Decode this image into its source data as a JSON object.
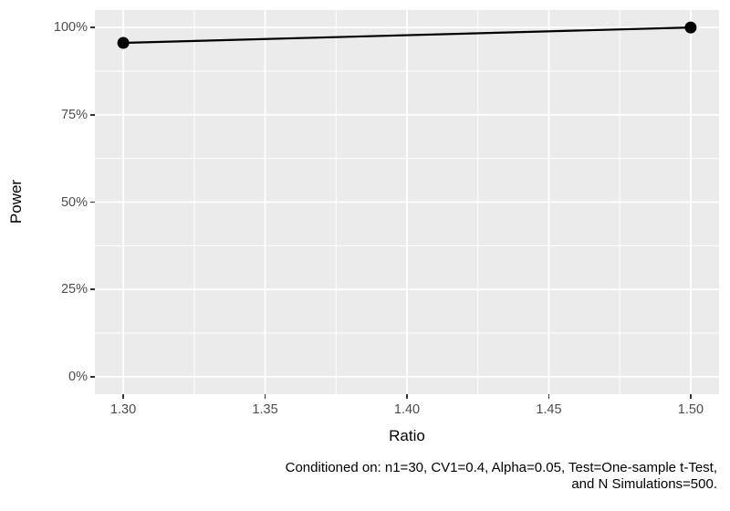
{
  "chart_data": {
    "type": "line",
    "title": "",
    "xlabel": "Ratio",
    "ylabel": "Power",
    "x": [
      1.3,
      1.5
    ],
    "series": [
      {
        "name": "Power",
        "values": [
          0.956,
          1.0
        ]
      }
    ],
    "x_ticks": {
      "values": [
        1.3,
        1.35,
        1.4,
        1.45,
        1.5
      ],
      "labels": [
        "1.30",
        "1.35",
        "1.40",
        "1.45",
        "1.50"
      ]
    },
    "y_ticks": {
      "values": [
        0,
        0.25,
        0.5,
        0.75,
        1.0
      ],
      "labels": [
        "0%",
        "25%",
        "50%",
        "75%",
        "100%"
      ]
    },
    "x_minor": [
      1.325,
      1.375,
      1.425,
      1.475
    ],
    "y_minor": [
      0.125,
      0.375,
      0.625,
      0.875
    ],
    "xlim": [
      1.29,
      1.51
    ],
    "ylim": [
      -0.05,
      1.05
    ],
    "grid": "major-and-minor",
    "legend": "none",
    "caption": {
      "align": "right",
      "lines": [
        "Conditioned on: n1=30, CV1=0.4, Alpha=0.05, Test=One-sample t-Test,",
        "and N Simulations=500."
      ]
    },
    "colors": {
      "page_bg": "#FFFFFF",
      "panel_bg": "#EBEBEB",
      "grid": "#FFFFFF",
      "line": "#000000",
      "point": "#000000",
      "tick_label": "#4D4D4D",
      "tick_mark": "#333333",
      "axis_title": "#000000",
      "caption": "#000000"
    }
  }
}
